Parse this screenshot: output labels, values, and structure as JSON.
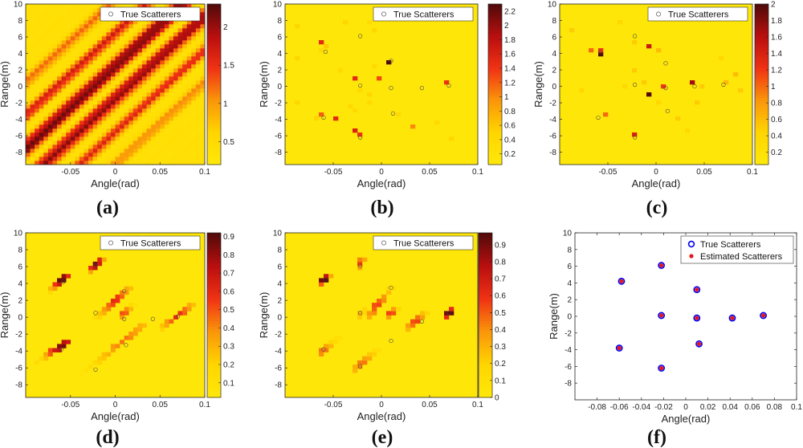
{
  "chart_data": [
    {
      "id": "a",
      "type": "heatmap",
      "title": "(a)",
      "xlabel": "Angle(rad)",
      "ylabel": "Range(m)",
      "xlim": [
        -0.1,
        0.1
      ],
      "ylim": [
        -9.5,
        10
      ],
      "xticks": [
        "-0.05",
        "0",
        "0.05",
        "0.1"
      ],
      "xtick_values": [
        -0.05,
        0,
        0.05,
        0.1
      ],
      "yticks": [
        "-8",
        "-6",
        "-4",
        "-2",
        "0",
        "2",
        "4",
        "6",
        "8",
        "10"
      ],
      "ytick_values": [
        -8,
        -6,
        -4,
        -2,
        0,
        2,
        4,
        6,
        8,
        10
      ],
      "legend": "True Scatterers",
      "colormap": "hot",
      "colorbar_ticks": [
        "0.5",
        "1",
        "1.5",
        "2"
      ],
      "colorbar_values": [
        0.5,
        1,
        1.5,
        2
      ],
      "colorbar_range": [
        0.2,
        2.3
      ],
      "pattern": "diagonal-stripes",
      "background_level": 0.4,
      "stripes": [
        {
          "offset": 2.5,
          "value": 2.2,
          "width": 1.4
        },
        {
          "offset": -1.5,
          "value": 2.0,
          "width": 1.4
        },
        {
          "offset": 6.5,
          "value": 1.6,
          "width": 1.2
        },
        {
          "offset": -5.5,
          "value": 1.5,
          "width": 1.2
        },
        {
          "offset": 10.5,
          "value": 1.2,
          "width": 1.2
        },
        {
          "offset": -9.5,
          "value": 1.1,
          "width": 1.2
        }
      ],
      "slope": 100,
      "scatterers": []
    },
    {
      "id": "b",
      "type": "heatmap",
      "title": "(b)",
      "xlabel": "Angle(rad)",
      "ylabel": "Range(m)",
      "xlim": [
        -0.1,
        0.1
      ],
      "ylim": [
        -9.5,
        10
      ],
      "xticks": [
        "-0.05",
        "0",
        "0.05",
        "0.1"
      ],
      "xtick_values": [
        -0.05,
        0,
        0.05,
        0.1
      ],
      "yticks": [
        "-8",
        "-6",
        "-4",
        "-2",
        "0",
        "2",
        "4",
        "6",
        "8",
        "10"
      ],
      "ytick_values": [
        -8,
        -6,
        -4,
        -2,
        0,
        2,
        4,
        6,
        8,
        10
      ],
      "legend": "True Scatterers",
      "colormap": "hot",
      "colorbar_ticks": [
        "0.2",
        "0.4",
        "0.6",
        "0.8",
        "1",
        "1.2",
        "1.4",
        "1.6",
        "1.8",
        "2",
        "2.2"
      ],
      "colorbar_values": [
        0.2,
        0.4,
        0.6,
        0.8,
        1,
        1.2,
        1.4,
        1.6,
        1.8,
        2,
        2.2
      ],
      "colorbar_range": [
        0.05,
        2.3
      ],
      "cells": [
        [
          0.008,
          3.0,
          2.3
        ],
        [
          -0.03,
          1.0,
          1.5
        ],
        [
          -0.005,
          1.0,
          1.3
        ],
        [
          -0.05,
          -4.0,
          1.5
        ],
        [
          -0.03,
          -5.5,
          1.6
        ],
        [
          -0.02,
          -6.0,
          1.4
        ],
        [
          -0.065,
          5.5,
          1.5
        ],
        [
          0.068,
          0.5,
          1.4
        ],
        [
          -0.065,
          -3.5,
          1.2
        ],
        [
          0.03,
          -5.0,
          1.0
        ],
        [
          -0.09,
          7.5,
          0.5
        ],
        [
          -0.06,
          4.8,
          0.6
        ],
        [
          -0.09,
          -2.0,
          0.5
        ],
        [
          -0.065,
          4.5,
          0.4
        ],
        [
          -0.01,
          7.0,
          0.5
        ],
        [
          -0.012,
          -1.0,
          0.5
        ],
        [
          -0.008,
          2.5,
          0.4
        ],
        [
          0.015,
          -3.5,
          0.4
        ],
        [
          -0.045,
          2.0,
          0.4
        ],
        [
          -0.07,
          -3.8,
          0.5
        ],
        [
          0.058,
          -4.3,
          0.4
        ],
        [
          -0.015,
          -2.0,
          0.4
        ],
        [
          -0.02,
          -0.5,
          0.4
        ],
        [
          0.075,
          -6.5,
          0.5
        ],
        [
          -0.038,
          8.0,
          0.5
        ],
        [
          -0.035,
          -2.5,
          0.4
        ],
        [
          -0.09,
          3.5,
          0.5
        ],
        [
          -0.015,
          8.0,
          0.4
        ],
        [
          -0.03,
          -3.0,
          0.4
        ]
      ],
      "scatterers": [
        [
          -0.058,
          4.2
        ],
        [
          -0.022,
          6.1
        ],
        [
          0.01,
          3.1
        ],
        [
          -0.022,
          0.1
        ],
        [
          0.01,
          -0.2
        ],
        [
          0.042,
          -0.2
        ],
        [
          0.07,
          0.1
        ],
        [
          -0.06,
          -3.8
        ],
        [
          0.012,
          -3.3
        ],
        [
          -0.022,
          -6.2
        ]
      ]
    },
    {
      "id": "c",
      "type": "heatmap",
      "title": "(c)",
      "xlabel": "Angle(rad)",
      "ylabel": "Range(m)",
      "xlim": [
        -0.1,
        0.1
      ],
      "ylim": [
        -9.5,
        10
      ],
      "xticks": [
        "-0.05",
        "0",
        "0.05",
        "0.1"
      ],
      "xtick_values": [
        -0.05,
        0,
        0.05,
        0.1
      ],
      "yticks": [
        "-8",
        "-6",
        "-4",
        "-2",
        "0",
        "2",
        "4",
        "6",
        "8",
        "10"
      ],
      "ytick_values": [
        -8,
        -6,
        -4,
        -2,
        0,
        2,
        4,
        6,
        8,
        10
      ],
      "legend": "True Scatterers",
      "colormap": "hot",
      "colorbar_ticks": [
        "0.2",
        "0.4",
        "0.6",
        "0.8",
        "1",
        "1.2",
        "1.4",
        "1.6",
        "1.8",
        "2"
      ],
      "colorbar_values": [
        0.2,
        0.4,
        0.6,
        0.8,
        1,
        1.2,
        1.4,
        1.6,
        1.8,
        2
      ],
      "colorbar_range": [
        0.05,
        2.0
      ],
      "cells": [
        [
          -0.06,
          4.0,
          2.0
        ],
        [
          -0.01,
          5.0,
          1.5
        ],
        [
          -0.01,
          -1.0,
          2.0
        ],
        [
          0.035,
          0.5,
          1.7
        ],
        [
          -0.02,
          -6.0,
          1.4
        ],
        [
          -0.06,
          4.5,
          1.2
        ],
        [
          0.01,
          0.0,
          1.2
        ],
        [
          -0.07,
          4.5,
          1.0
        ],
        [
          -0.055,
          -3.5,
          1.0
        ],
        [
          0.07,
          0.5,
          0.6
        ],
        [
          0.0,
          4.5,
          0.6
        ],
        [
          -0.09,
          7.0,
          0.5
        ],
        [
          0.085,
          -0.5,
          0.5
        ],
        [
          0.08,
          1.5,
          0.6
        ],
        [
          -0.025,
          2.0,
          0.5
        ],
        [
          0.02,
          -3.8,
          0.5
        ],
        [
          0.04,
          -2.0,
          0.5
        ],
        [
          -0.035,
          0.0,
          0.4
        ],
        [
          0.03,
          -5.5,
          0.4
        ],
        [
          -0.015,
          0.5,
          0.5
        ],
        [
          -0.02,
          5.5,
          0.5
        ],
        [
          0.045,
          0.0,
          0.5
        ],
        [
          -0.08,
          -0.5,
          0.4
        ],
        [
          0.065,
          3.5,
          0.4
        ],
        [
          -0.04,
          8.0,
          0.4
        ],
        [
          0.0,
          -2.0,
          0.4
        ]
      ],
      "scatterers": [
        [
          -0.058,
          4.2
        ],
        [
          -0.022,
          6.1
        ],
        [
          0.01,
          2.8
        ],
        [
          -0.022,
          0.2
        ],
        [
          0.01,
          -0.2
        ],
        [
          0.04,
          0.0
        ],
        [
          0.07,
          0.2
        ],
        [
          -0.06,
          -3.8
        ],
        [
          0.012,
          -3.0
        ],
        [
          -0.022,
          -6.2
        ]
      ]
    },
    {
      "id": "d",
      "type": "heatmap",
      "title": "(d)",
      "xlabel": "Angle(rad)",
      "ylabel": "Range(m)",
      "xlim": [
        -0.1,
        0.1
      ],
      "ylim": [
        -9.5,
        10
      ],
      "xticks": [
        "-0.05",
        "0",
        "0.05",
        "0.1"
      ],
      "xtick_values": [
        -0.05,
        0,
        0.05,
        0.1
      ],
      "yticks": [
        "-8",
        "-6",
        "-4",
        "-2",
        "0",
        "2",
        "4",
        "6",
        "8",
        "10"
      ],
      "ytick_values": [
        -8,
        -6,
        -4,
        -2,
        0,
        2,
        4,
        6,
        8,
        10
      ],
      "legend": "True Scatterers",
      "colormap": "hot",
      "colorbar_ticks": [
        "0.1",
        "0.2",
        "0.3",
        "0.4",
        "0.5",
        "0.6",
        "0.7",
        "0.8",
        "0.9"
      ],
      "colorbar_values": [
        0.1,
        0.2,
        0.3,
        0.4,
        0.5,
        0.6,
        0.7,
        0.8,
        0.9
      ],
      "colorbar_range": [
        0.02,
        0.92
      ],
      "lines": [
        {
          "x0": -0.075,
          "y0": 3.0,
          "x1": -0.055,
          "y1": 5.0,
          "peak": 0.9,
          "at": -0.06
        },
        {
          "x0": -0.03,
          "y0": 5.5,
          "x1": -0.015,
          "y1": 7.0,
          "peak": 0.85,
          "at": -0.022
        },
        {
          "x0": -0.02,
          "y0": 0.0,
          "x1": 0.015,
          "y1": 3.5,
          "peak": 0.6,
          "at": 0.0
        },
        {
          "x0": 0.005,
          "y0": 0.0,
          "x1": 0.02,
          "y1": 1.5,
          "peak": 0.5,
          "at": 0.01
        },
        {
          "x0": 0.05,
          "y0": -1.5,
          "x1": 0.085,
          "y1": 1.5,
          "peak": 0.6,
          "at": 0.07
        },
        {
          "x0": -0.09,
          "y0": -5.5,
          "x1": -0.055,
          "y1": -3.0,
          "peak": 0.85,
          "at": -0.06
        },
        {
          "x0": -0.04,
          "y0": -7.0,
          "x1": 0.03,
          "y1": -1.0,
          "peak": 0.45,
          "at": 0.01
        }
      ],
      "scatterers": [
        [
          -0.058,
          4.2
        ],
        [
          -0.022,
          6.1
        ],
        [
          0.01,
          3.1
        ],
        [
          -0.022,
          0.5
        ],
        [
          0.01,
          -0.2
        ],
        [
          0.042,
          -0.2
        ],
        [
          0.07,
          0.1
        ],
        [
          -0.06,
          -3.8
        ],
        [
          0.012,
          -3.3
        ],
        [
          -0.022,
          -6.2
        ]
      ]
    },
    {
      "id": "e",
      "type": "heatmap",
      "title": "(e)",
      "xlabel": "Angle(rad)",
      "ylabel": "Range(m)",
      "xlim": [
        -0.1,
        0.1
      ],
      "ylim": [
        -9.5,
        10
      ],
      "xticks": [
        "-0.05",
        "0",
        "0.05",
        "0.1"
      ],
      "xtick_values": [
        -0.05,
        0,
        0.05,
        0.1
      ],
      "yticks": [
        "-8",
        "-6",
        "-4",
        "-2",
        "0",
        "2",
        "4",
        "6",
        "8",
        "10"
      ],
      "ytick_values": [
        -8,
        -6,
        -4,
        -2,
        0,
        2,
        4,
        6,
        8,
        10
      ],
      "legend": "True Scatterers",
      "colormap": "hot",
      "colorbar_ticks": [
        "0",
        "0.1",
        "0.2",
        "0.3",
        "0.4",
        "0.5",
        "0.6",
        "0.7",
        "0.8",
        "0.9"
      ],
      "colorbar_values": [
        0,
        0.1,
        0.2,
        0.3,
        0.4,
        0.5,
        0.6,
        0.7,
        0.8,
        0.9
      ],
      "colorbar_range": [
        0,
        0.97
      ],
      "lines": [
        {
          "x0": -0.065,
          "y0": 4.0,
          "x1": -0.055,
          "y1": 5.0,
          "peak": 0.95,
          "at": -0.06
        },
        {
          "x0": -0.025,
          "y0": 6.0,
          "x1": -0.018,
          "y1": 7.0,
          "peak": 0.55,
          "at": -0.022
        },
        {
          "x0": -0.015,
          "y0": 0.0,
          "x1": 0.01,
          "y1": 3.5,
          "peak": 0.55,
          "at": -0.005
        },
        {
          "x0": 0.005,
          "y0": 0.0,
          "x1": 0.015,
          "y1": 1.0,
          "peak": 0.55,
          "at": 0.01
        },
        {
          "x0": 0.025,
          "y0": -1.5,
          "x1": 0.045,
          "y1": 0.5,
          "peak": 0.55,
          "at": 0.035
        },
        {
          "x0": 0.065,
          "y0": 0.0,
          "x1": 0.075,
          "y1": 1.0,
          "peak": 0.95,
          "at": 0.07
        },
        {
          "x0": -0.065,
          "y0": -4.5,
          "x1": -0.045,
          "y1": -2.5,
          "peak": 0.45,
          "at": -0.06
        },
        {
          "x0": -0.03,
          "y0": -6.5,
          "x1": -0.005,
          "y1": -4.0,
          "peak": 0.45,
          "at": -0.02
        },
        {
          "x0": -0.025,
          "y0": 0.0,
          "x1": -0.018,
          "y1": 1.0,
          "peak": 0.3,
          "at": -0.022
        }
      ],
      "scatterers": [
        [
          -0.058,
          4.5
        ],
        [
          -0.022,
          6.1
        ],
        [
          0.01,
          3.5
        ],
        [
          -0.022,
          0.5
        ],
        [
          0.01,
          -2.8
        ],
        [
          0.042,
          -0.5
        ],
        [
          0.07,
          0.5
        ],
        [
          -0.06,
          -3.8
        ],
        [
          -0.022,
          -5.8
        ]
      ]
    },
    {
      "id": "f",
      "type": "scatter",
      "title": "(f)",
      "xlabel": "Angle(rad)",
      "ylabel": "Range(m)",
      "xlim": [
        -0.1,
        0.1
      ],
      "ylim": [
        -10,
        10
      ],
      "xticks": [
        "-0.08",
        "-0.06",
        "-0.04",
        "-0.02",
        "0",
        "0.02",
        "0.04",
        "0.06",
        "0.08",
        "0.1"
      ],
      "xtick_values": [
        -0.08,
        -0.06,
        -0.04,
        -0.02,
        0,
        0.02,
        0.04,
        0.06,
        0.08,
        0.1
      ],
      "yticks": [
        "-8",
        "-6",
        "-4",
        "-2",
        "0",
        "2",
        "4",
        "6",
        "8",
        "10"
      ],
      "ytick_values": [
        -8,
        -6,
        -4,
        -2,
        0,
        2,
        4,
        6,
        8,
        10
      ],
      "legend": [
        "True Scatterers",
        "Estimated Scatterers"
      ],
      "series": [
        {
          "name": "True Scatterers",
          "marker": "circle-open",
          "color": "#0000ee",
          "points": [
            [
              -0.058,
              4.2
            ],
            [
              -0.022,
              6.1
            ],
            [
              0.01,
              3.2
            ],
            [
              -0.022,
              0.1
            ],
            [
              0.01,
              -0.2
            ],
            [
              0.042,
              -0.2
            ],
            [
              0.07,
              0.1
            ],
            [
              -0.06,
              -3.8
            ],
            [
              0.012,
              -3.3
            ],
            [
              -0.022,
              -6.2
            ]
          ]
        },
        {
          "name": "Estimated Scatterers",
          "marker": "dot",
          "color": "#e8141a",
          "points": [
            [
              -0.058,
              4.2
            ],
            [
              -0.022,
              6.1
            ],
            [
              0.01,
              3.2
            ],
            [
              -0.022,
              0.1
            ],
            [
              0.01,
              -0.2
            ],
            [
              0.042,
              -0.2
            ],
            [
              0.07,
              0.1
            ],
            [
              -0.06,
              -3.8
            ],
            [
              0.012,
              -3.3
            ],
            [
              -0.022,
              -6.2
            ]
          ]
        }
      ]
    }
  ]
}
